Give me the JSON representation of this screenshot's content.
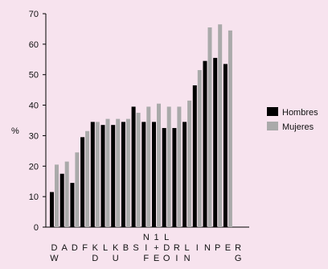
{
  "chart_data": {
    "type": "bar",
    "ylabel": "%",
    "ylim": [
      0,
      70
    ],
    "yticks": [
      0,
      10,
      20,
      30,
      40,
      50,
      60,
      70
    ],
    "grid": false,
    "legend_position": "right",
    "categories": [
      [
        "D",
        "W"
      ],
      [
        "A"
      ],
      [
        "D"
      ],
      [
        "F"
      ],
      [
        "K",
        "D"
      ],
      [
        "L"
      ],
      [
        "K",
        "U"
      ],
      [
        "B"
      ],
      [
        "S"
      ],
      [
        "N",
        "I",
        "F"
      ],
      [
        "1",
        "+",
        "E"
      ],
      [
        "L",
        "D",
        "O"
      ],
      [
        "R",
        "I"
      ],
      [
        "L",
        "N"
      ],
      [
        "I"
      ],
      [
        "N"
      ],
      [
        "P"
      ],
      [
        "E"
      ],
      [
        "R",
        "G"
      ]
    ],
    "series": [
      {
        "name": "Hombres",
        "color": "#000000",
        "values": [
          11.5,
          17.5,
          14.5,
          29.5,
          34.5,
          33.5,
          33.5,
          34.5,
          39.5,
          34.5,
          34.5,
          32.5,
          32.5,
          34.5,
          46.5,
          54.5,
          55.5,
          53.5,
          null
        ]
      },
      {
        "name": "Mujeres",
        "color": "#aaaaaa",
        "values": [
          20.5,
          21.5,
          24.5,
          31.5,
          34.5,
          35.5,
          35.5,
          35.5,
          37.5,
          39.5,
          40.5,
          39.5,
          39.5,
          41.5,
          51.5,
          65.5,
          66.5,
          64.5,
          null
        ]
      }
    ]
  }
}
